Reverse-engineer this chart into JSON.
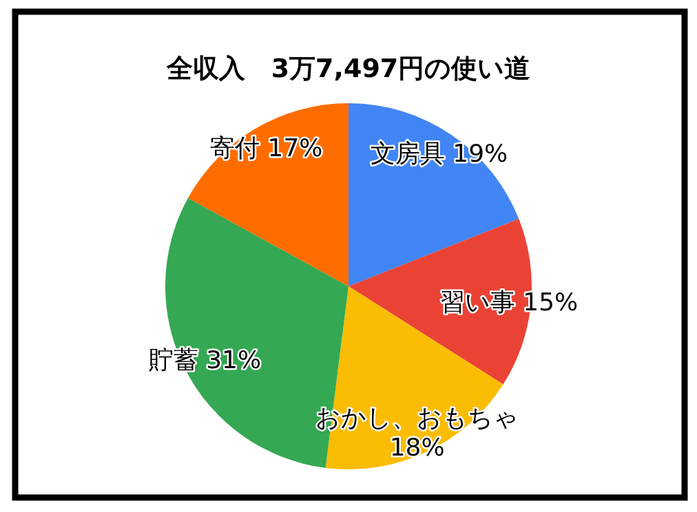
{
  "chart_data": {
    "type": "pie",
    "title": "全収入　3万7,497円の使い道",
    "categories": [
      "文房具",
      "習い事",
      "おかし、おもちゃ",
      "貯蓄",
      "寄付"
    ],
    "values": [
      19,
      15,
      18,
      31,
      17
    ],
    "value_labels": [
      "19%",
      "15%",
      "18%",
      "31%",
      "17%"
    ],
    "colors": [
      "#4285f4",
      "#ea4335",
      "#fbbc04",
      "#34a853",
      "#ff6d01"
    ]
  }
}
